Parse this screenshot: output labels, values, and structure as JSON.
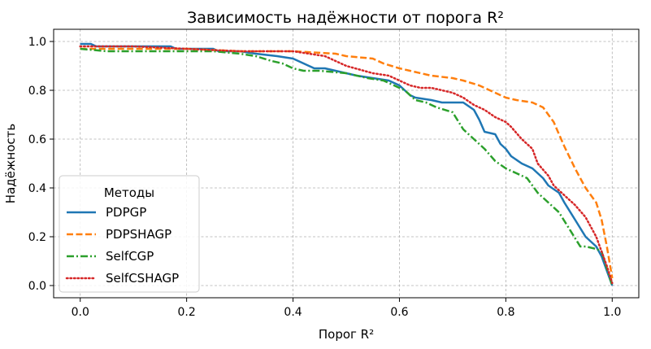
{
  "chart_data": {
    "type": "line",
    "title": "Зависимость надёжности от порога R²",
    "xlabel": "Порог R²",
    "ylabel": "Надёжность",
    "xlim": [
      -0.05,
      1.05
    ],
    "ylim": [
      -0.05,
      1.05
    ],
    "xticks": [
      0.0,
      0.2,
      0.4,
      0.6,
      0.8,
      1.0
    ],
    "yticks": [
      0.0,
      0.2,
      0.4,
      0.6,
      0.8,
      1.0
    ],
    "xtick_labels": [
      "0.0",
      "0.2",
      "0.4",
      "0.6",
      "0.8",
      "1.0"
    ],
    "ytick_labels": [
      "0.0",
      "0.2",
      "0.4",
      "0.6",
      "0.8",
      "1.0"
    ],
    "grid": true,
    "legend": {
      "title": "Методы",
      "placement": "lower-left"
    },
    "series": [
      {
        "name": "PDPGP",
        "color": "#1f77b4",
        "dash": "solid",
        "x": [
          0.0,
          0.02,
          0.03,
          0.1,
          0.17,
          0.18,
          0.25,
          0.26,
          0.3,
          0.33,
          0.37,
          0.4,
          0.42,
          0.44,
          0.46,
          0.48,
          0.5,
          0.52,
          0.55,
          0.58,
          0.6,
          0.61,
          0.62,
          0.63,
          0.66,
          0.68,
          0.72,
          0.74,
          0.75,
          0.76,
          0.78,
          0.79,
          0.8,
          0.81,
          0.83,
          0.85,
          0.87,
          0.88,
          0.9,
          0.91,
          0.93,
          0.95,
          0.97,
          0.98,
          1.0
        ],
        "y": [
          0.99,
          0.99,
          0.98,
          0.98,
          0.98,
          0.97,
          0.97,
          0.96,
          0.96,
          0.95,
          0.94,
          0.93,
          0.91,
          0.89,
          0.89,
          0.88,
          0.87,
          0.86,
          0.85,
          0.84,
          0.82,
          0.8,
          0.78,
          0.77,
          0.76,
          0.75,
          0.75,
          0.72,
          0.68,
          0.63,
          0.62,
          0.58,
          0.56,
          0.53,
          0.5,
          0.48,
          0.44,
          0.41,
          0.38,
          0.34,
          0.27,
          0.2,
          0.16,
          0.12,
          0.0
        ]
      },
      {
        "name": "PDPSHAGP",
        "color": "#ff7f0e",
        "dash": "dashed",
        "x": [
          0.0,
          0.02,
          0.1,
          0.2,
          0.3,
          0.4,
          0.48,
          0.5,
          0.55,
          0.57,
          0.6,
          0.62,
          0.64,
          0.66,
          0.7,
          0.72,
          0.75,
          0.77,
          0.79,
          0.8,
          0.82,
          0.85,
          0.87,
          0.88,
          0.89,
          0.9,
          0.91,
          0.93,
          0.95,
          0.97,
          0.98,
          0.99,
          1.0
        ],
        "y": [
          0.97,
          0.97,
          0.97,
          0.97,
          0.96,
          0.96,
          0.95,
          0.94,
          0.93,
          0.91,
          0.89,
          0.88,
          0.87,
          0.86,
          0.85,
          0.84,
          0.82,
          0.8,
          0.78,
          0.77,
          0.76,
          0.75,
          0.73,
          0.7,
          0.67,
          0.62,
          0.57,
          0.48,
          0.4,
          0.34,
          0.27,
          0.16,
          0.03
        ]
      },
      {
        "name": "SelfCGP",
        "color": "#2ca02c",
        "dash": "dashdot",
        "x": [
          0.0,
          0.05,
          0.1,
          0.17,
          0.25,
          0.3,
          0.33,
          0.36,
          0.38,
          0.4,
          0.42,
          0.45,
          0.5,
          0.54,
          0.57,
          0.59,
          0.61,
          0.63,
          0.65,
          0.67,
          0.7,
          0.72,
          0.74,
          0.76,
          0.78,
          0.8,
          0.82,
          0.84,
          0.86,
          0.88,
          0.9,
          0.92,
          0.94,
          0.95,
          0.97,
          0.98,
          1.0
        ],
        "y": [
          0.97,
          0.96,
          0.96,
          0.96,
          0.96,
          0.95,
          0.94,
          0.92,
          0.91,
          0.89,
          0.88,
          0.88,
          0.87,
          0.85,
          0.84,
          0.82,
          0.8,
          0.76,
          0.75,
          0.73,
          0.71,
          0.64,
          0.6,
          0.56,
          0.51,
          0.48,
          0.46,
          0.44,
          0.38,
          0.34,
          0.3,
          0.23,
          0.16,
          0.16,
          0.15,
          0.14,
          0.0
        ]
      },
      {
        "name": "SelfCSHAGP",
        "color": "#d62728",
        "dash": "dotted",
        "x": [
          0.0,
          0.05,
          0.1,
          0.2,
          0.3,
          0.35,
          0.4,
          0.43,
          0.46,
          0.48,
          0.5,
          0.55,
          0.58,
          0.6,
          0.62,
          0.64,
          0.66,
          0.68,
          0.7,
          0.72,
          0.74,
          0.76,
          0.78,
          0.8,
          0.81,
          0.83,
          0.85,
          0.86,
          0.88,
          0.89,
          0.9,
          0.92,
          0.93,
          0.95,
          0.97,
          0.99,
          1.0
        ],
        "y": [
          0.98,
          0.98,
          0.98,
          0.97,
          0.96,
          0.96,
          0.96,
          0.95,
          0.94,
          0.92,
          0.9,
          0.87,
          0.86,
          0.84,
          0.82,
          0.81,
          0.81,
          0.8,
          0.79,
          0.77,
          0.74,
          0.72,
          0.69,
          0.67,
          0.65,
          0.6,
          0.56,
          0.5,
          0.45,
          0.41,
          0.39,
          0.35,
          0.33,
          0.28,
          0.2,
          0.08,
          0.01
        ]
      }
    ]
  }
}
